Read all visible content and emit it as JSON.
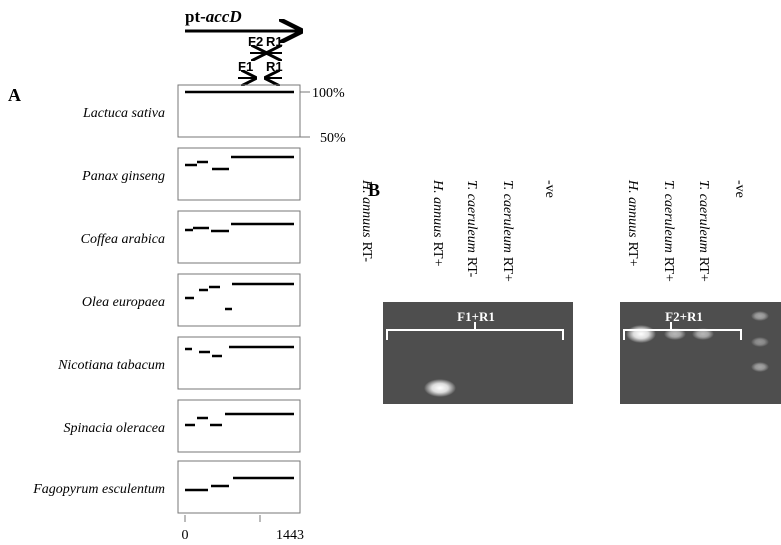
{
  "panel_a": {
    "label": "A",
    "gene": {
      "prefix": "pt-",
      "name": "accD"
    },
    "primers_top": [
      "F2",
      "R1"
    ],
    "primers_bottom": [
      "F1",
      "R1"
    ],
    "species": [
      "Lactuca sativa",
      "Panax ginseng",
      "Coffea arabica",
      "Olea europaea",
      "Nicotiana tabacum",
      "Spinacia oleracea",
      "Fagopyrum esculentum"
    ],
    "y_labels": [
      "100%",
      "50%"
    ],
    "x_labels": [
      "0",
      "1443"
    ]
  },
  "panel_b": {
    "label": "B",
    "gel1": {
      "title": "F1+R1",
      "lanes": [
        {
          "species": "H. annuus",
          "suffix": "RT-"
        },
        {
          "species": "H. annuus",
          "suffix": "RT+"
        },
        {
          "species": "T. caeruleum",
          "suffix": "RT-"
        },
        {
          "species": "T. caeruleum",
          "suffix": "RT+"
        },
        {
          "species": "",
          "suffix": "-ve"
        }
      ]
    },
    "gel2": {
      "title": "F2+R1",
      "lanes": [
        {
          "species": "H. annuus",
          "suffix": "RT+"
        },
        {
          "species": "T. caeruleum",
          "suffix": "RT+"
        },
        {
          "species": "T. caeruleum",
          "suffix": "RT+"
        },
        {
          "species": "",
          "suffix": "-ve"
        }
      ]
    }
  }
}
